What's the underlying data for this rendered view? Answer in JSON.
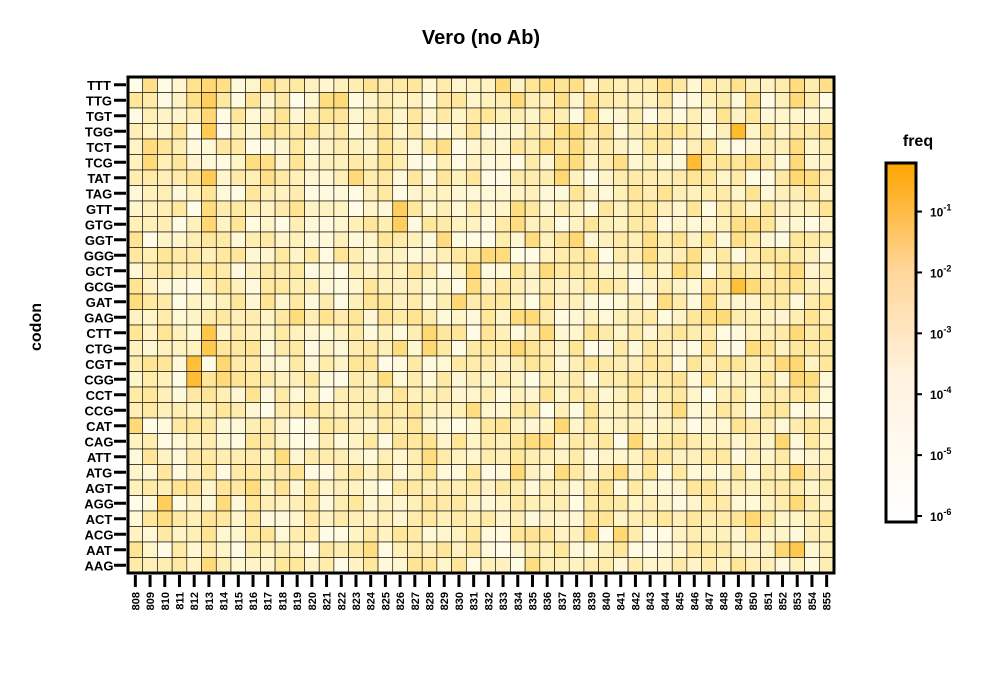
{
  "chart_data": {
    "type": "heatmap",
    "title": "Vero (no Ab)",
    "ylabel": "codon",
    "xlabel": "",
    "x_categories": [
      "808",
      "809",
      "810",
      "811",
      "812",
      "813",
      "814",
      "815",
      "816",
      "817",
      "818",
      "819",
      "820",
      "821",
      "822",
      "823",
      "824",
      "825",
      "826",
      "827",
      "828",
      "829",
      "830",
      "831",
      "832",
      "833",
      "834",
      "835",
      "836",
      "837",
      "838",
      "839",
      "840",
      "841",
      "842",
      "843",
      "844",
      "845",
      "846",
      "847",
      "848",
      "849",
      "850",
      "851",
      "852",
      "853",
      "854",
      "855"
    ],
    "y_categories": [
      "TTT",
      "TTG",
      "TGT",
      "TGG",
      "TCT",
      "TCG",
      "TAT",
      "TAG",
      "GTT",
      "GTG",
      "GGT",
      "GGG",
      "GCT",
      "GCG",
      "GAT",
      "GAG",
      "CTT",
      "CTG",
      "CGT",
      "CGG",
      "CCT",
      "CCG",
      "CAT",
      "CAG",
      "ATT",
      "ATG",
      "AGT",
      "AGG",
      "ACT",
      "ACG",
      "AAT",
      "AAG"
    ],
    "legend": {
      "title": "freq",
      "scale": "log10",
      "range": [
        1e-06,
        0.5
      ],
      "tick_values": [
        1e-06,
        1e-05,
        0.0001,
        0.001,
        0.01,
        0.1
      ],
      "tick_labels": [
        "10^-6",
        "10^-5",
        "10^-4",
        "10^-3",
        "10^-2",
        "10^-1"
      ],
      "color_low": "#ffffff",
      "color_high": "#ffa500"
    },
    "grid": true,
    "highlights": [
      {
        "codon": "TTT",
        "site": "809",
        "freq": 0.0003
      },
      {
        "codon": "TTT",
        "site": "812",
        "freq": 0.0002
      },
      {
        "codon": "TTT",
        "site": "813",
        "freq": 0.0008
      },
      {
        "codon": "TTT",
        "site": "814",
        "freq": 0.0003
      },
      {
        "codon": "TTT",
        "site": "817",
        "freq": 0.0003
      },
      {
        "codon": "TTT",
        "site": "833",
        "freq": 0.0006
      },
      {
        "codon": "TTT",
        "site": "836",
        "freq": 0.0004
      },
      {
        "codon": "TTT",
        "site": "838",
        "freq": 0.0003
      },
      {
        "codon": "TTT",
        "site": "844",
        "freq": 0.0003
      },
      {
        "codon": "TTT",
        "site": "849",
        "freq": 0.0002
      },
      {
        "codon": "TTT",
        "site": "853",
        "freq": 0.0005
      },
      {
        "codon": "TTT",
        "site": "855",
        "freq": 0.0003
      },
      {
        "codon": "TTG",
        "site": "812",
        "freq": 0.0003
      },
      {
        "codon": "TTG",
        "site": "813",
        "freq": 0.003
      },
      {
        "codon": "TTG",
        "site": "821",
        "freq": 0.0004
      },
      {
        "codon": "TTG",
        "site": "822",
        "freq": 0.0006
      },
      {
        "codon": "TTG",
        "site": "834",
        "freq": 0.0006
      },
      {
        "codon": "TTG",
        "site": "837",
        "freq": 0.0003
      },
      {
        "codon": "TTG",
        "site": "850",
        "freq": 0.0003
      },
      {
        "codon": "TTG",
        "site": "853",
        "freq": 0.0006
      },
      {
        "codon": "TGT",
        "site": "813",
        "freq": 0.0008
      },
      {
        "codon": "TGT",
        "site": "839",
        "freq": 0.0003
      },
      {
        "codon": "TGG",
        "site": "813",
        "freq": 0.004
      },
      {
        "codon": "TGG",
        "site": "817",
        "freq": 0.0002
      },
      {
        "codon": "TGG",
        "site": "837",
        "freq": 0.0004
      },
      {
        "codon": "TGG",
        "site": "838",
        "freq": 0.0005
      },
      {
        "codon": "TGG",
        "site": "849",
        "freq": 0.04
      },
      {
        "codon": "TGG",
        "site": "855",
        "freq": 0.0003
      },
      {
        "codon": "TCT",
        "site": "809",
        "freq": 0.0005
      },
      {
        "codon": "TCT",
        "site": "829",
        "freq": 0.0003
      },
      {
        "codon": "TCT",
        "site": "836",
        "freq": 0.0004
      },
      {
        "codon": "TCT",
        "site": "838",
        "freq": 0.0005
      },
      {
        "codon": "TCT",
        "site": "853",
        "freq": 0.0004
      },
      {
        "codon": "TCG",
        "site": "809",
        "freq": 0.0006
      },
      {
        "codon": "TCG",
        "site": "816",
        "freq": 0.0004
      },
      {
        "codon": "TCG",
        "site": "817",
        "freq": 0.0003
      },
      {
        "codon": "TCG",
        "site": "837",
        "freq": 0.0004
      },
      {
        "codon": "TCG",
        "site": "838",
        "freq": 0.0005
      },
      {
        "codon": "TCG",
        "site": "841",
        "freq": 0.0003
      },
      {
        "codon": "TCG",
        "site": "846",
        "freq": 0.03
      },
      {
        "codon": "TCG",
        "site": "850",
        "freq": 0.0004
      },
      {
        "codon": "TCG",
        "site": "853",
        "freq": 0.0006
      },
      {
        "codon": "TAT",
        "site": "813",
        "freq": 0.004
      },
      {
        "codon": "TAT",
        "site": "817",
        "freq": 0.0003
      },
      {
        "codon": "TAT",
        "site": "823",
        "freq": 0.0006
      },
      {
        "codon": "TAT",
        "site": "837",
        "freq": 0.0008
      },
      {
        "codon": "TAT",
        "site": "853",
        "freq": 0.0008
      },
      {
        "codon": "TAT",
        "site": "854",
        "freq": 0.0004
      },
      {
        "codon": "GTT",
        "site": "813",
        "freq": 0.0005
      },
      {
        "codon": "GTT",
        "site": "826",
        "freq": 0.003
      },
      {
        "codon": "GTT",
        "site": "834",
        "freq": 0.0004
      },
      {
        "codon": "GTG",
        "site": "813",
        "freq": 0.0008
      },
      {
        "codon": "GTG",
        "site": "826",
        "freq": 0.003
      },
      {
        "codon": "GTG",
        "site": "834",
        "freq": 0.0004
      },
      {
        "codon": "GTG",
        "site": "849",
        "freq": 0.0003
      },
      {
        "codon": "GTG",
        "site": "850",
        "freq": 0.0004
      },
      {
        "codon": "GGT",
        "site": "829",
        "freq": 0.0005
      },
      {
        "codon": "GGT",
        "site": "835",
        "freq": 0.0005
      },
      {
        "codon": "GGT",
        "site": "838",
        "freq": 0.0008
      },
      {
        "codon": "GGT",
        "site": "843",
        "freq": 0.0003
      },
      {
        "codon": "GGT",
        "site": "849",
        "freq": 0.0003
      },
      {
        "codon": "GGG",
        "site": "832",
        "freq": 0.0006
      },
      {
        "codon": "GGG",
        "site": "833",
        "freq": 0.0005
      },
      {
        "codon": "GGG",
        "site": "843",
        "freq": 0.0005
      },
      {
        "codon": "GGG",
        "site": "846",
        "freq": 0.0003
      },
      {
        "codon": "GCT",
        "site": "831",
        "freq": 0.0008
      },
      {
        "codon": "GCT",
        "site": "836",
        "freq": 0.0006
      },
      {
        "codon": "GCT",
        "site": "845",
        "freq": 0.0005
      },
      {
        "codon": "GCT",
        "site": "853",
        "freq": 0.0005
      },
      {
        "codon": "GCG",
        "site": "831",
        "freq": 0.0005
      },
      {
        "codon": "GCG",
        "site": "849",
        "freq": 0.02
      },
      {
        "codon": "GCG",
        "site": "850",
        "freq": 0.0006
      },
      {
        "codon": "GAT",
        "site": "808",
        "freq": 0.0005
      },
      {
        "codon": "GAT",
        "site": "830",
        "freq": 0.0008
      },
      {
        "codon": "GAT",
        "site": "844",
        "freq": 0.0004
      },
      {
        "codon": "GAT",
        "site": "847",
        "freq": 0.0005
      },
      {
        "codon": "GAG",
        "site": "819",
        "freq": 0.0005
      },
      {
        "codon": "GAG",
        "site": "834",
        "freq": 0.0005
      },
      {
        "codon": "GAG",
        "site": "835",
        "freq": 0.0006
      },
      {
        "codon": "GAG",
        "site": "847",
        "freq": 0.0004
      },
      {
        "codon": "GAG",
        "site": "848",
        "freq": 0.0006
      },
      {
        "codon": "CTT",
        "site": "813",
        "freq": 0.008
      },
      {
        "codon": "CTT",
        "site": "828",
        "freq": 0.0008
      },
      {
        "codon": "CTT",
        "site": "836",
        "freq": 0.0006
      },
      {
        "codon": "CTT",
        "site": "853",
        "freq": 0.0006
      },
      {
        "codon": "CTG",
        "site": "813",
        "freq": 0.006
      },
      {
        "codon": "CTG",
        "site": "826",
        "freq": 0.0005
      },
      {
        "codon": "CTG",
        "site": "828",
        "freq": 0.0008
      },
      {
        "codon": "CTG",
        "site": "834",
        "freq": 0.0008
      },
      {
        "codon": "CTG",
        "site": "850",
        "freq": 0.0005
      },
      {
        "codon": "CGT",
        "site": "812",
        "freq": 0.02
      },
      {
        "codon": "CGT",
        "site": "814",
        "freq": 0.0008
      },
      {
        "codon": "CGT",
        "site": "852",
        "freq": 0.0006
      },
      {
        "codon": "CGT",
        "site": "853",
        "freq": 0.0008
      },
      {
        "codon": "CGG",
        "site": "812",
        "freq": 0.03
      },
      {
        "codon": "CGG",
        "site": "814",
        "freq": 0.0006
      },
      {
        "codon": "CGG",
        "site": "825",
        "freq": 0.0004
      },
      {
        "codon": "CGG",
        "site": "853",
        "freq": 0.0008
      },
      {
        "codon": "CGG",
        "site": "854",
        "freq": 0.0005
      },
      {
        "codon": "CCG",
        "site": "831",
        "freq": 0.0004
      },
      {
        "codon": "CCG",
        "site": "845",
        "freq": 0.0005
      },
      {
        "codon": "CAT",
        "site": "808",
        "freq": 0.0006
      },
      {
        "codon": "CAT",
        "site": "837",
        "freq": 0.0008
      },
      {
        "codon": "CAG",
        "site": "835",
        "freq": 0.0005
      },
      {
        "codon": "CAG",
        "site": "836",
        "freq": 0.0005
      },
      {
        "codon": "CAG",
        "site": "842",
        "freq": 0.0008
      },
      {
        "codon": "CAG",
        "site": "852",
        "freq": 0.0008
      },
      {
        "codon": "ATT",
        "site": "818",
        "freq": 0.0005
      },
      {
        "codon": "ATT",
        "site": "828",
        "freq": 0.0004
      },
      {
        "codon": "ATG",
        "site": "834",
        "freq": 0.0006
      },
      {
        "codon": "ATG",
        "site": "837",
        "freq": 0.0005
      },
      {
        "codon": "ATG",
        "site": "841",
        "freq": 0.0005
      },
      {
        "codon": "ATG",
        "site": "853",
        "freq": 0.0008
      },
      {
        "codon": "AGT",
        "site": "816",
        "freq": 0.0005
      },
      {
        "codon": "AGG",
        "site": "810",
        "freq": 0.003
      },
      {
        "codon": "AGG",
        "site": "814",
        "freq": 0.0005
      },
      {
        "codon": "AGG",
        "site": "853",
        "freq": 0.0006
      },
      {
        "codon": "ACT",
        "site": "810",
        "freq": 0.0004
      },
      {
        "codon": "ACT",
        "site": "850",
        "freq": 0.0008
      },
      {
        "codon": "ACG",
        "site": "841",
        "freq": 0.0008
      },
      {
        "codon": "ACG",
        "site": "839",
        "freq": 0.0005
      },
      {
        "codon": "AAT",
        "site": "853",
        "freq": 0.006
      },
      {
        "codon": "AAT",
        "site": "852",
        "freq": 0.0008
      },
      {
        "codon": "AAT",
        "site": "824",
        "freq": 0.0004
      },
      {
        "codon": "AAG",
        "site": "813",
        "freq": 0.0006
      },
      {
        "codon": "AAG",
        "site": "835",
        "freq": 0.0004
      }
    ]
  }
}
